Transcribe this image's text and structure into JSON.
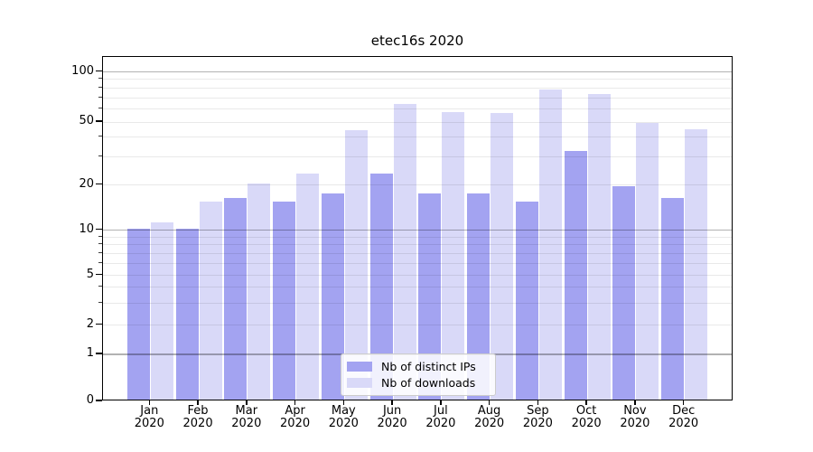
{
  "chart_data": {
    "type": "bar",
    "title": "etec16s 2020",
    "categories": [
      "Jan 2020",
      "Feb 2020",
      "Mar 2020",
      "Apr 2020",
      "May 2020",
      "Jun 2020",
      "Jul 2020",
      "Aug 2020",
      "Sep 2020",
      "Oct 2020",
      "Nov 2020",
      "Dec 2020"
    ],
    "series": [
      {
        "name": "Nb of distinct IPs",
        "color": "#a3a3f1",
        "values": [
          10,
          10,
          16,
          15,
          17,
          23,
          17,
          17,
          15,
          32,
          19,
          16
        ]
      },
      {
        "name": "Nb of downloads",
        "color": "#d9d9f8",
        "values": [
          11,
          15,
          20,
          23,
          43,
          63,
          56,
          55,
          76,
          72,
          48,
          44
        ]
      }
    ],
    "xlabel": "",
    "ylabel": "",
    "yscale": "symlog",
    "ylim": [
      0,
      120
    ],
    "y_tick_values": [
      0,
      1,
      2,
      5,
      10,
      20,
      50,
      100
    ],
    "y_tick_labels": [
      "0",
      "1",
      "2",
      "5",
      "10",
      "20",
      "50",
      "100"
    ],
    "y_major_gridlines": [
      1,
      10,
      100
    ],
    "y_minor_gridlines": [
      2,
      3,
      4,
      5,
      6,
      7,
      8,
      9,
      20,
      30,
      40,
      50,
      60,
      70,
      80,
      90
    ],
    "grid": true,
    "legend_position": "lower center",
    "colors": {
      "axis": "#000000",
      "grid_major": "#b0b0b0",
      "grid_minor": "#e8e8e8",
      "background": "#ffffff"
    }
  }
}
